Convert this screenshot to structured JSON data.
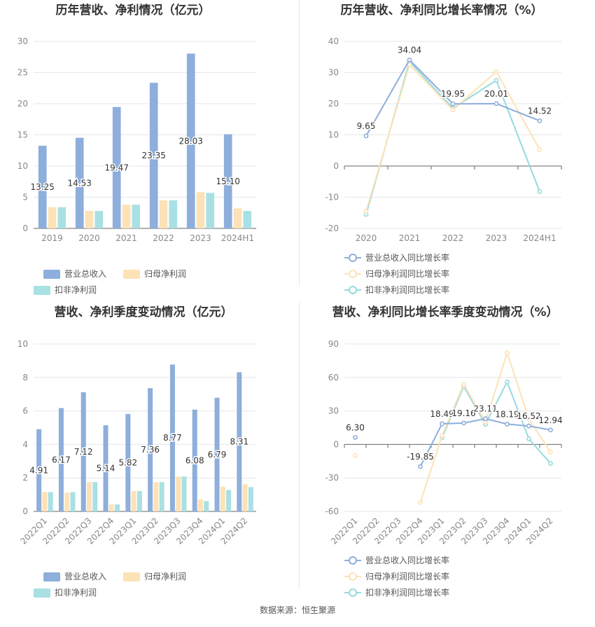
{
  "footer": {
    "source": "数据来源：恒生聚源"
  },
  "colors": {
    "revenue": "#8eaedb",
    "parent_profit": "#fde2b7",
    "deducted_profit": "#a9e0e3",
    "line_revenue": "#8eaedb",
    "line_parent": "#fde2b7",
    "line_deducted": "#96dadd",
    "grid": "#e6e6e6",
    "axis": "#666666",
    "tick": "#888888",
    "title": "#333333"
  },
  "chart_data": [
    {
      "id": "annual-revenue-profit",
      "type": "bar",
      "title": "历年营收、净利情况（亿元）",
      "categories": [
        "2019",
        "2020",
        "2021",
        "2022",
        "2023",
        "2024H1"
      ],
      "ylim": [
        0,
        30
      ],
      "yticks": [
        0,
        5,
        10,
        15,
        20,
        25,
        30
      ],
      "series": [
        {
          "name": "营业总收入",
          "color": "#8eaedb",
          "values": [
            13.25,
            14.53,
            19.47,
            23.35,
            28.03,
            15.1
          ],
          "labels": [
            "13.25",
            "14.53",
            "19.47",
            "23.35",
            "28.03",
            "15.10"
          ]
        },
        {
          "name": "归母净利润",
          "color": "#fde2b7",
          "values": [
            3.4,
            2.8,
            3.8,
            4.5,
            5.8,
            3.2
          ]
        },
        {
          "name": "扣非净利润",
          "color": "#a9e0e3",
          "values": [
            3.4,
            2.8,
            3.8,
            4.5,
            5.7,
            2.8
          ]
        }
      ],
      "grid": true,
      "legend": "bottom"
    },
    {
      "id": "annual-growth-rate",
      "type": "line",
      "title": "历年营收、净利同比增长率情况（%）",
      "categories": [
        "2020",
        "2021",
        "2022",
        "2023",
        "2024H1"
      ],
      "ylim": [
        -20,
        40
      ],
      "yticks": [
        -20,
        -10,
        0,
        10,
        20,
        30,
        40
      ],
      "series": [
        {
          "name": "营业总收入同比增长率",
          "color": "#8eaedb",
          "values": [
            9.65,
            34.04,
            19.95,
            20.01,
            14.52
          ],
          "labels": [
            "9.65",
            "34.04",
            "19.95",
            "20.01",
            "14.52"
          ]
        },
        {
          "name": "归母净利润同比增长率",
          "color": "#fde2b7",
          "values": [
            -14.5,
            32.5,
            18.0,
            30.3,
            5.3
          ]
        },
        {
          "name": "扣非净利润同比增长率",
          "color": "#96dadd",
          "values": [
            -15.5,
            33.5,
            18.5,
            27.5,
            -8.2
          ]
        }
      ],
      "grid": true,
      "legend": "bottom"
    },
    {
      "id": "quarterly-revenue-profit",
      "type": "bar",
      "title": "营收、净利季度变动情况（亿元）",
      "categories": [
        "2022Q1",
        "2022Q2",
        "2022Q3",
        "2022Q4",
        "2023Q1",
        "2023Q2",
        "2023Q3",
        "2023Q4",
        "2024Q1",
        "2024Q2"
      ],
      "ylim": [
        0,
        10
      ],
      "yticks": [
        0,
        2,
        4,
        6,
        8,
        10
      ],
      "series": [
        {
          "name": "营业总收入",
          "color": "#8eaedb",
          "values": [
            4.91,
            6.17,
            7.12,
            5.14,
            5.82,
            7.36,
            8.77,
            6.08,
            6.79,
            8.31
          ],
          "labels": [
            "4.91",
            "6.17",
            "7.12",
            "5.14",
            "5.82",
            "7.36",
            "8.77",
            "6.08",
            "6.79",
            "8.31"
          ]
        },
        {
          "name": "归母净利润",
          "color": "#fde2b7",
          "values": [
            1.15,
            1.12,
            1.75,
            0.42,
            1.22,
            1.75,
            2.08,
            0.72,
            1.48,
            1.62
          ]
        },
        {
          "name": "扣非净利润",
          "color": "#a9e0e3",
          "values": [
            1.15,
            1.15,
            1.75,
            0.42,
            1.22,
            1.75,
            2.08,
            0.62,
            1.28,
            1.45
          ]
        }
      ],
      "grid": true,
      "legend": "bottom"
    },
    {
      "id": "quarterly-growth-rate",
      "type": "line",
      "title": "营收、净利同比增长率季度变动情况（%）",
      "categories": [
        "2022Q1",
        "2022Q2",
        "2022Q3",
        "2022Q4",
        "2023Q1",
        "2023Q2",
        "2023Q3",
        "2023Q4",
        "2024Q1",
        "2024Q2"
      ],
      "ylim": [
        -60,
        90
      ],
      "yticks": [
        -60,
        -30,
        0,
        30,
        60,
        90
      ],
      "series": [
        {
          "name": "营业总收入同比增长率",
          "color": "#8eaedb",
          "values": [
            6.3,
            null,
            null,
            -19.85,
            18.49,
            19.16,
            23.11,
            18.19,
            16.52,
            12.94
          ],
          "labels": [
            "6.30",
            null,
            null,
            "-19.85",
            "18.49",
            "19.16",
            "23.11",
            "18.19",
            "16.52",
            "12.94"
          ]
        },
        {
          "name": "归母净利润同比增长率",
          "color": "#fde2b7",
          "values": [
            -10,
            null,
            null,
            -52,
            8,
            54,
            20,
            82,
            23,
            -7
          ]
        },
        {
          "name": "扣非净利润同比增长率",
          "color": "#96dadd",
          "values": [
            null,
            null,
            null,
            null,
            6,
            52,
            18,
            56,
            5,
            -17
          ]
        }
      ],
      "grid": true,
      "legend": "bottom"
    }
  ]
}
